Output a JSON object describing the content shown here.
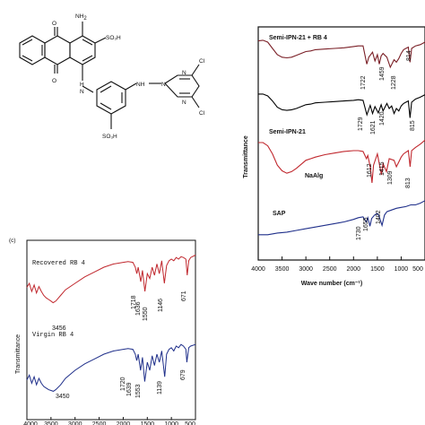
{
  "structure": {
    "amine_label": "NH",
    "amine_subscript": "2",
    "sulfonic_top": "SO₃H",
    "sulfonic_bottom": "SO₃H",
    "chlorine_top": "Cl",
    "chlorine_bottom": "Cl",
    "nh_left": "H",
    "nh_left_n": "N",
    "nh_right": "NH",
    "oxo_top": "O",
    "oxo_bottom": "O",
    "triazine_n": "N"
  },
  "panel_label": "(c)",
  "chart_data": [
    {
      "type": "line",
      "id": "ftir-polymers",
      "title": "",
      "xlabel": "Wave number (cm⁻¹)",
      "ylabel": "Transmittance",
      "x_ticks": [
        "4000",
        "3500",
        "3000",
        "2500",
        "2000",
        "1500",
        "1000",
        "500"
      ],
      "xlim": [
        4000,
        500
      ],
      "x_reversed": true,
      "series": [
        {
          "name": "Semi-IPN-21 + RB 4",
          "color": "#7a1f26",
          "x": [
            4000,
            3900,
            3800,
            3700,
            3600,
            3500,
            3400,
            3300,
            3200,
            3100,
            3000,
            2900,
            2800,
            2600,
            2400,
            2200,
            2000,
            1900,
            1800,
            1722,
            1680,
            1600,
            1550,
            1500,
            1459,
            1420,
            1380,
            1300,
            1228,
            1150,
            1100,
            1050,
            1000,
            950,
            900,
            850,
            814,
            780,
            700,
            600,
            500
          ],
          "y": [
            0.92,
            0.93,
            0.9,
            0.8,
            0.7,
            0.66,
            0.65,
            0.66,
            0.69,
            0.72,
            0.75,
            0.76,
            0.78,
            0.79,
            0.8,
            0.81,
            0.83,
            0.84,
            0.84,
            0.55,
            0.66,
            0.74,
            0.6,
            0.7,
            0.55,
            0.68,
            0.72,
            0.66,
            0.5,
            0.62,
            0.58,
            0.64,
            0.72,
            0.78,
            0.8,
            0.82,
            0.58,
            0.8,
            0.84,
            0.86,
            0.9
          ]
        },
        {
          "name": "Semi-IPN-21",
          "color": "#000000",
          "x": [
            4000,
            3900,
            3800,
            3700,
            3600,
            3500,
            3400,
            3300,
            3200,
            3100,
            3000,
            2900,
            2800,
            2600,
            2400,
            2200,
            2000,
            1900,
            1800,
            1720,
            1650,
            1600,
            1550,
            1480,
            1420,
            1380,
            1300,
            1250,
            1200,
            1150,
            1100,
            1050,
            1000,
            950,
            900,
            850,
            815,
            780,
            700,
            600,
            500
          ],
          "y": [
            0.93,
            0.93,
            0.9,
            0.82,
            0.72,
            0.68,
            0.67,
            0.68,
            0.7,
            0.73,
            0.76,
            0.77,
            0.79,
            0.8,
            0.81,
            0.82,
            0.83,
            0.84,
            0.83,
            0.6,
            0.75,
            0.62,
            0.73,
            0.63,
            0.76,
            0.66,
            0.78,
            0.7,
            0.74,
            0.62,
            0.7,
            0.66,
            0.74,
            0.78,
            0.8,
            0.82,
            0.55,
            0.8,
            0.85,
            0.88,
            0.92
          ]
        },
        {
          "name": "NaAlg",
          "color": "#c0272d",
          "x": [
            4000,
            3900,
            3800,
            3700,
            3600,
            3500,
            3400,
            3300,
            3200,
            3100,
            3000,
            2900,
            2800,
            2600,
            2400,
            2200,
            2000,
            1900,
            1800,
            1729,
            1700,
            1650,
            1612,
            1580,
            1500,
            1415,
            1380,
            1309,
            1250,
            1150,
            1100,
            1050,
            1000,
            950,
            900,
            850,
            813,
            780,
            700,
            600,
            500
          ],
          "y": [
            0.9,
            0.9,
            0.86,
            0.76,
            0.62,
            0.55,
            0.52,
            0.54,
            0.58,
            0.63,
            0.68,
            0.7,
            0.72,
            0.75,
            0.77,
            0.79,
            0.8,
            0.8,
            0.79,
            0.7,
            0.74,
            0.6,
            0.4,
            0.62,
            0.76,
            0.5,
            0.64,
            0.54,
            0.7,
            0.68,
            0.6,
            0.66,
            0.72,
            0.76,
            0.78,
            0.8,
            0.6,
            0.8,
            0.84,
            0.88,
            0.93
          ]
        },
        {
          "name": "SAP",
          "color": "#1f2f8a",
          "x": [
            4000,
            3800,
            3600,
            3400,
            3200,
            3000,
            2800,
            2600,
            2400,
            2200,
            2000,
            1900,
            1800,
            1730,
            1700,
            1655,
            1620,
            1560,
            1500,
            1460,
            1402,
            1350,
            1300,
            1200,
            1100,
            1000,
            900,
            800,
            700,
            600,
            500
          ],
          "y": [
            0.35,
            0.35,
            0.37,
            0.38,
            0.4,
            0.42,
            0.44,
            0.46,
            0.48,
            0.5,
            0.53,
            0.55,
            0.56,
            0.5,
            0.55,
            0.45,
            0.54,
            0.58,
            0.6,
            0.56,
            0.46,
            0.58,
            0.62,
            0.64,
            0.66,
            0.67,
            0.68,
            0.7,
            0.7,
            0.72,
            0.75
          ]
        }
      ],
      "annotations": [
        "1722",
        "1459",
        "1228",
        "814",
        "815",
        "1729",
        "1621",
        "1420",
        "1612",
        "1415",
        "1309",
        "813",
        "1730",
        "1655",
        "1402"
      ]
    },
    {
      "type": "line",
      "id": "ftir-dye",
      "title": "",
      "xlabel": "",
      "ylabel": "Transmittance",
      "x_ticks": [
        "4000",
        "3500",
        "3000",
        "2500",
        "2000",
        "1500",
        "1000",
        "500"
      ],
      "xlim": [
        4000,
        500
      ],
      "x_reversed": true,
      "series": [
        {
          "name": "Recovered RB 4",
          "color": "#c0272d",
          "x": [
            4000,
            3950,
            3900,
            3850,
            3800,
            3750,
            3700,
            3650,
            3600,
            3550,
            3500,
            3456,
            3400,
            3300,
            3200,
            3000,
            2800,
            2600,
            2400,
            2200,
            2000,
            1900,
            1800,
            1750,
            1718,
            1690,
            1636,
            1600,
            1550,
            1500,
            1450,
            1400,
            1350,
            1300,
            1250,
            1200,
            1146,
            1100,
            1050,
            1000,
            950,
            900,
            850,
            800,
            750,
            700,
            671,
            640,
            600,
            500
          ],
          "y": [
            0.55,
            0.6,
            0.5,
            0.58,
            0.48,
            0.56,
            0.5,
            0.45,
            0.42,
            0.4,
            0.38,
            0.36,
            0.38,
            0.45,
            0.52,
            0.6,
            0.68,
            0.74,
            0.8,
            0.84,
            0.86,
            0.87,
            0.86,
            0.8,
            0.72,
            0.8,
            0.62,
            0.76,
            0.5,
            0.72,
            0.66,
            0.8,
            0.7,
            0.84,
            0.72,
            0.88,
            0.6,
            0.82,
            0.88,
            0.9,
            0.88,
            0.92,
            0.9,
            0.93,
            0.92,
            0.9,
            0.7,
            0.88,
            0.92,
            0.95
          ]
        },
        {
          "name": "Virgin RB 4",
          "color": "#1f2f8a",
          "x": [
            4000,
            3950,
            3900,
            3850,
            3800,
            3750,
            3700,
            3650,
            3600,
            3550,
            3500,
            3450,
            3400,
            3300,
            3200,
            3000,
            2800,
            2600,
            2400,
            2200,
            2000,
            1900,
            1800,
            1750,
            1720,
            1690,
            1639,
            1600,
            1553,
            1500,
            1450,
            1400,
            1350,
            1300,
            1250,
            1200,
            1139,
            1100,
            1050,
            1000,
            950,
            900,
            850,
            800,
            750,
            700,
            679,
            640,
            600,
            500
          ],
          "y": [
            0.18,
            0.24,
            0.14,
            0.22,
            0.12,
            0.2,
            0.14,
            0.1,
            0.08,
            0.06,
            0.05,
            0.04,
            0.06,
            0.12,
            0.2,
            0.3,
            0.38,
            0.44,
            0.5,
            0.54,
            0.56,
            0.57,
            0.56,
            0.5,
            0.42,
            0.5,
            0.3,
            0.46,
            0.16,
            0.4,
            0.3,
            0.48,
            0.36,
            0.5,
            0.4,
            0.54,
            0.22,
            0.5,
            0.56,
            0.58,
            0.54,
            0.6,
            0.58,
            0.62,
            0.6,
            0.56,
            0.4,
            0.58,
            0.6,
            0.62
          ]
        }
      ],
      "annotations": [
        "1718",
        "1636",
        "1550",
        "1146",
        "671",
        "3456",
        "1720",
        "1639",
        "1553",
        "1139",
        "679",
        "3450"
      ]
    }
  ]
}
